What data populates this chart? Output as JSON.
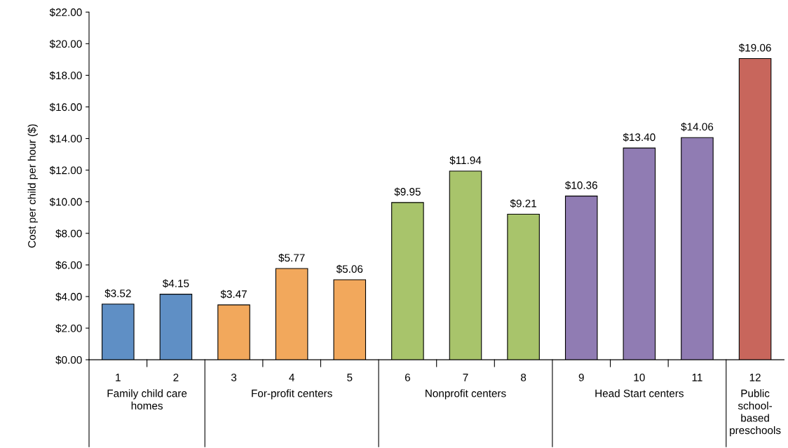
{
  "chart_data": {
    "type": "bar",
    "ylabel": "Cost per child per hour ($)",
    "categories": [
      "1",
      "2",
      "3",
      "4",
      "5",
      "6",
      "7",
      "8",
      "9",
      "10",
      "11",
      "12"
    ],
    "values": [
      3.52,
      4.15,
      3.47,
      5.77,
      5.06,
      9.95,
      11.94,
      9.21,
      10.36,
      13.4,
      14.06,
      19.06
    ],
    "value_labels": [
      "$3.52",
      "$4.15",
      "$3.47",
      "$5.77",
      "$5.06",
      "$9.95",
      "$11.94",
      "$9.21",
      "$10.36",
      "$13.40",
      "$14.06",
      "$19.06"
    ],
    "colors": [
      "#5f8fc5",
      "#5f8fc5",
      "#f2a85c",
      "#f2a85c",
      "#f2a85c",
      "#a8c46b",
      "#a8c46b",
      "#a8c46b",
      "#907cb3",
      "#907cb3",
      "#907cb3",
      "#c8665c"
    ],
    "ylim": [
      0,
      22
    ],
    "yticks": [
      {
        "value": 0,
        "label": "$0.00"
      },
      {
        "value": 2,
        "label": "$2.00"
      },
      {
        "value": 4,
        "label": "$4.00"
      },
      {
        "value": 6,
        "label": "$6.00"
      },
      {
        "value": 8,
        "label": "$8.00"
      },
      {
        "value": 10,
        "label": "$10.00"
      },
      {
        "value": 12,
        "label": "$12.00"
      },
      {
        "value": 14,
        "label": "$14.00"
      },
      {
        "value": 16,
        "label": "$16.00"
      },
      {
        "value": 18,
        "label": "$18.00"
      },
      {
        "value": 20,
        "label": "$20.00"
      },
      {
        "value": 22,
        "label": "$22.00"
      }
    ],
    "annotations": [
      "Family child care\nhomes",
      "For-profit centers",
      "Nonprofit centers",
      "Head Start centers",
      "Public\nschool-\nbased\npreschools"
    ],
    "grid": false,
    "legend": false
  }
}
